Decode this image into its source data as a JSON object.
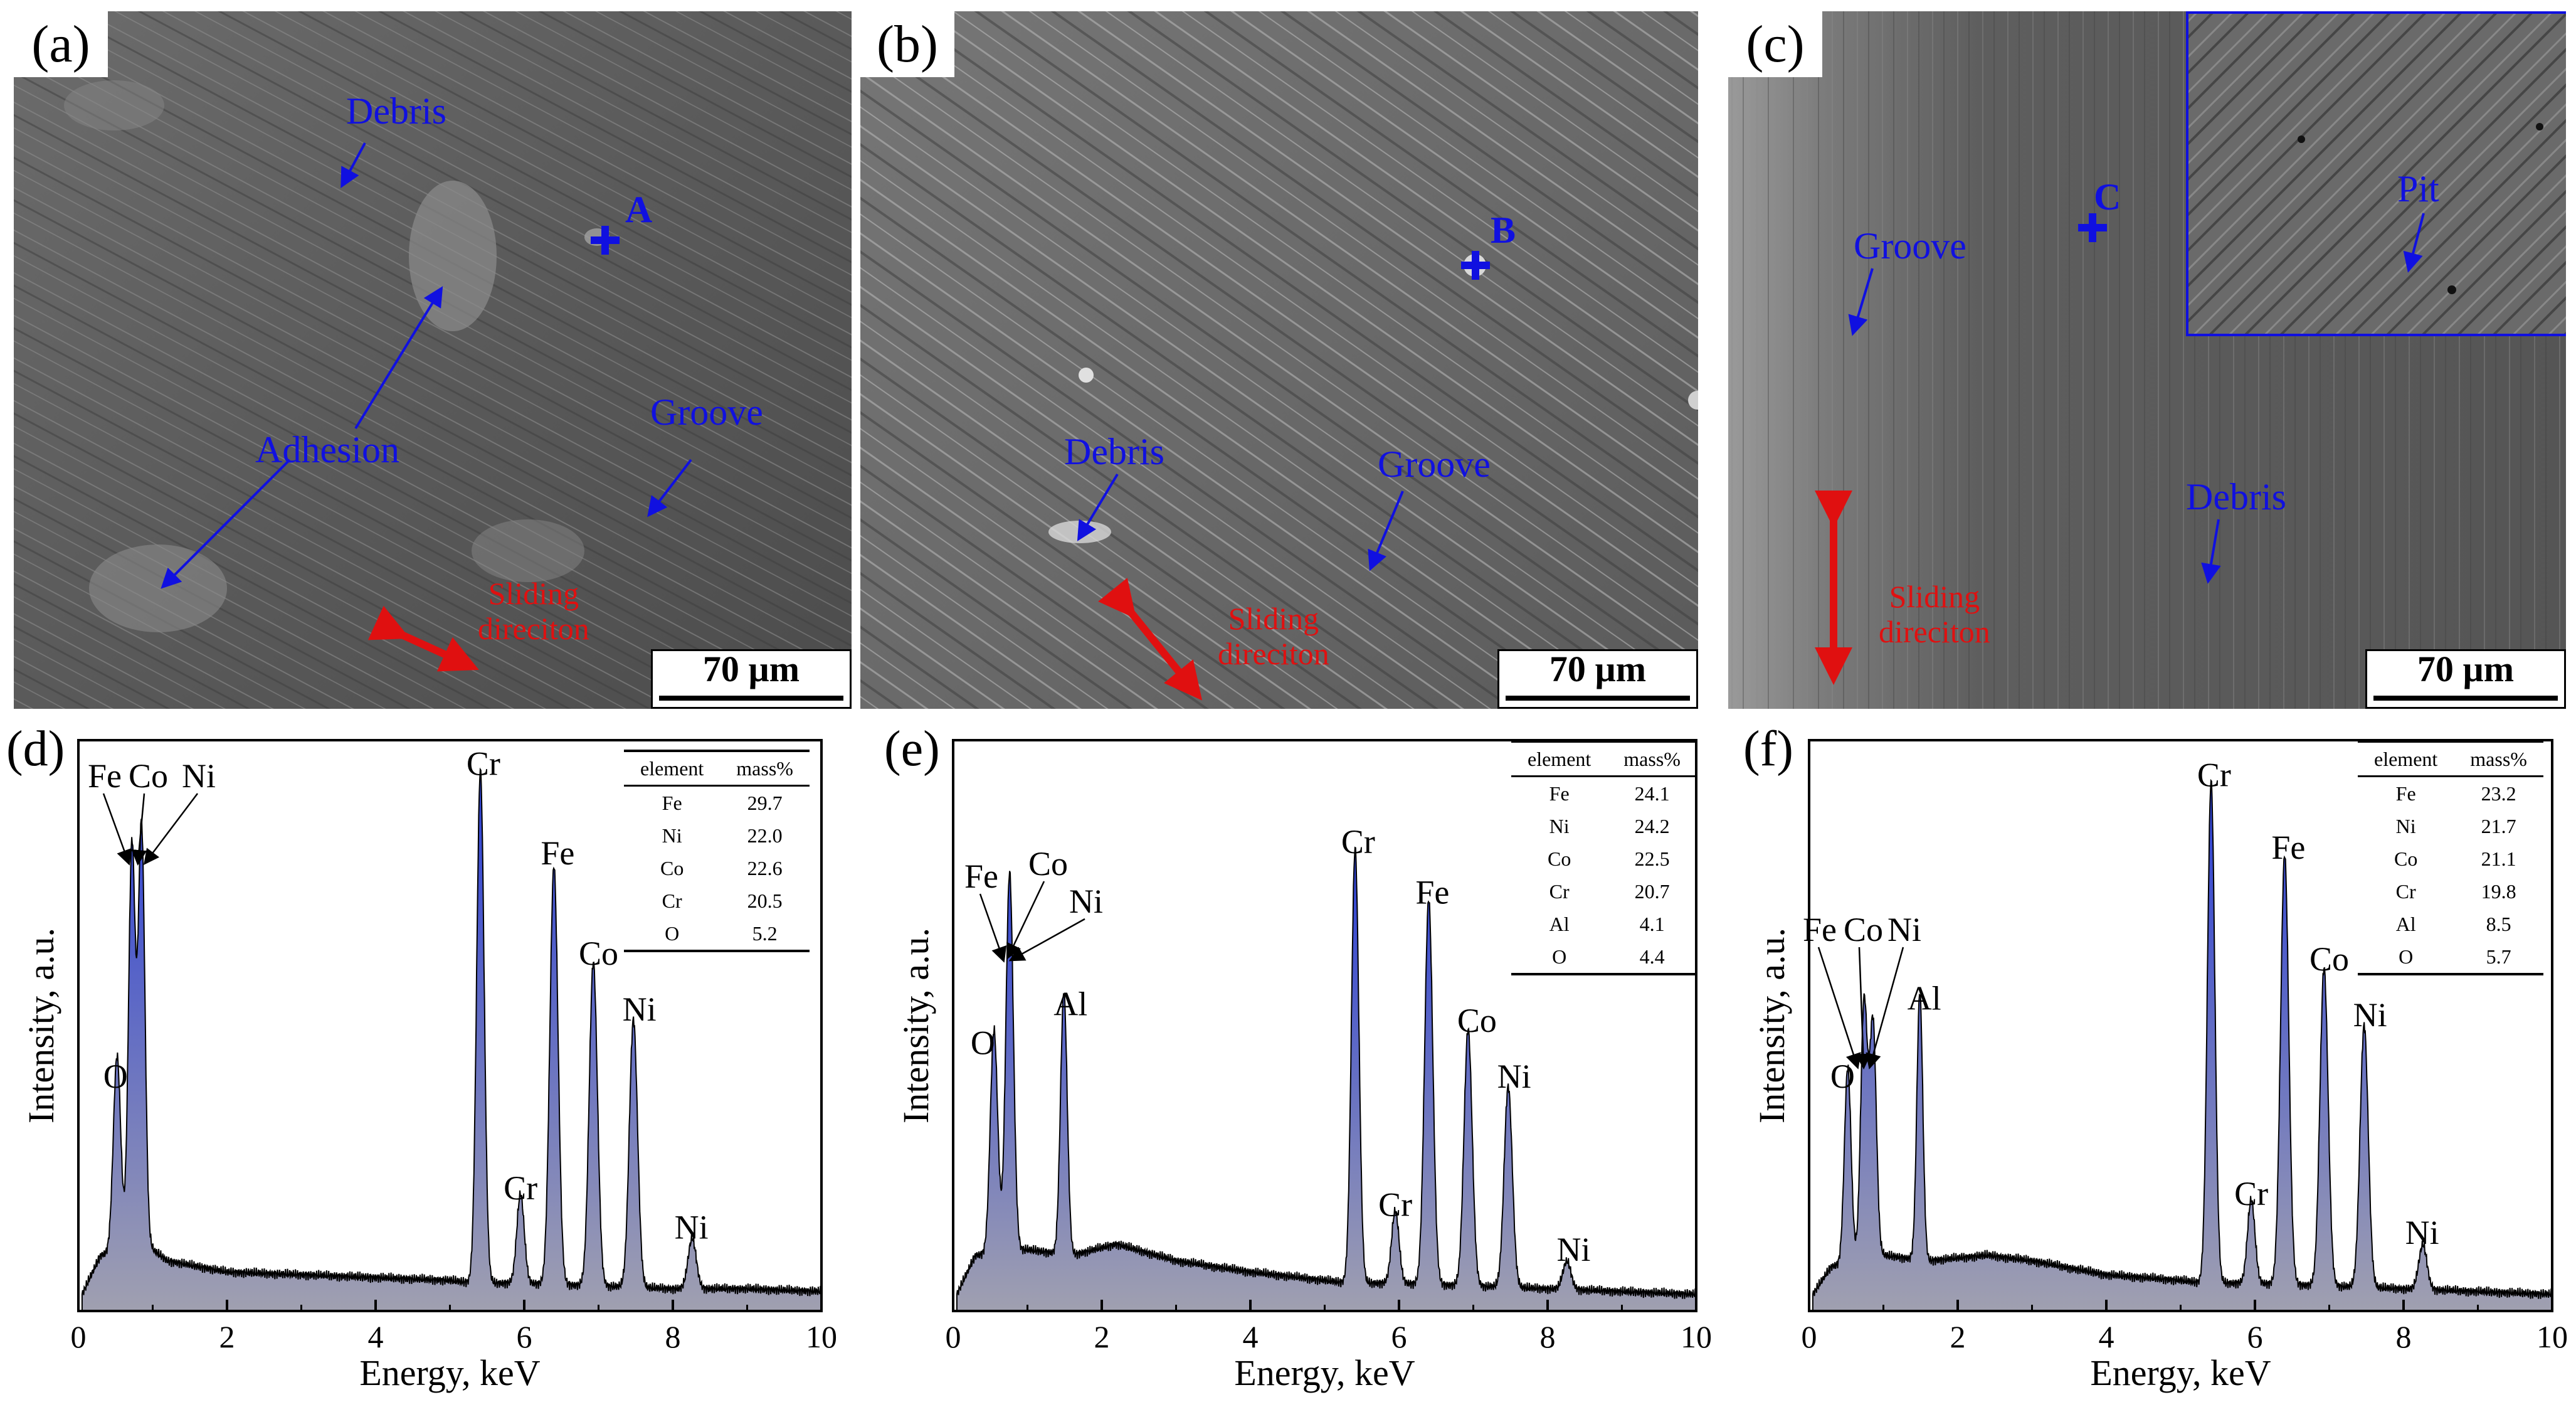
{
  "sem_panels": [
    {
      "letter": "(a)",
      "scale": "70 µm",
      "point": "A",
      "labels": [
        "Debris",
        "Adhesion",
        "Groove"
      ],
      "sliding": [
        "Sliding",
        "direciton"
      ]
    },
    {
      "letter": "(b)",
      "scale": "70 µm",
      "point": "B",
      "labels": [
        "Debris",
        "Groove"
      ],
      "sliding": [
        "Sliding",
        "direciton"
      ]
    },
    {
      "letter": "(c)",
      "scale": "70 µm",
      "point": "C",
      "labels": [
        "Groove",
        "Debris",
        "Pit"
      ],
      "sliding": [
        "Sliding",
        "direciton"
      ]
    }
  ],
  "colors": {
    "annotation": "#1010e0",
    "sliding": "#e01010",
    "spectrum_fill_top": "#2b3fd6",
    "spectrum_fill_bottom": "#a0a0b0"
  },
  "chart_data": [
    {
      "type": "area",
      "letter": "(d)",
      "xlabel": "Energy, keV",
      "ylabel": "Intensity, a.u.",
      "xlim": [
        0,
        10
      ],
      "xticks": [
        "0",
        "2",
        "4",
        "6",
        "8",
        "10"
      ],
      "grid": false,
      "baseline": {
        "x": [
          0.05,
          0.3,
          0.9,
          1.2,
          2,
          3,
          4,
          5,
          5.3,
          6,
          7,
          8,
          9,
          10
        ],
        "y": [
          0.03,
          0.1,
          0.12,
          0.09,
          0.07,
          0.065,
          0.06,
          0.055,
          0.05,
          0.05,
          0.045,
          0.04,
          0.04,
          0.035
        ]
      },
      "peaks": [
        {
          "label": "O",
          "x": 0.52,
          "y": 0.35,
          "w": 0.05
        },
        {
          "label": "Fe/Co/Ni L",
          "x": 0.72,
          "y": 0.72,
          "w": 0.045
        },
        {
          "label": "",
          "x": 0.85,
          "y": 0.75,
          "w": 0.045
        },
        {
          "label": "Cr",
          "x": 5.41,
          "y": 0.92,
          "w": 0.05
        },
        {
          "label": "Cr",
          "x": 5.95,
          "y": 0.16,
          "w": 0.05
        },
        {
          "label": "Fe",
          "x": 6.4,
          "y": 0.75,
          "w": 0.055
        },
        {
          "label": "Co",
          "x": 6.93,
          "y": 0.58,
          "w": 0.055
        },
        {
          "label": "Ni",
          "x": 7.47,
          "y": 0.48,
          "w": 0.055
        },
        {
          "label": "Ni",
          "x": 8.26,
          "y": 0.09,
          "w": 0.055
        }
      ],
      "peak_labels": [
        {
          "text": "O",
          "x": 0.5,
          "y": 0.4
        },
        {
          "text": "Cr",
          "x": 5.45,
          "y": 0.96
        },
        {
          "text": "Cr",
          "x": 5.95,
          "y": 0.2
        },
        {
          "text": "Fe",
          "x": 6.45,
          "y": 0.8
        },
        {
          "text": "Co",
          "x": 7.0,
          "y": 0.62
        },
        {
          "text": "Ni",
          "x": 7.55,
          "y": 0.52
        },
        {
          "text": "Ni",
          "x": 8.25,
          "y": 0.13
        }
      ],
      "top_labels": [
        "Fe",
        "Co",
        "Ni"
      ],
      "table": {
        "header": [
          "element",
          "mass%"
        ],
        "rows": [
          [
            "Fe",
            "29.7"
          ],
          [
            "Ni",
            "22.0"
          ],
          [
            "Co",
            "22.6"
          ],
          [
            "Cr",
            "20.5"
          ],
          [
            "O",
            "5.2"
          ]
        ]
      }
    },
    {
      "type": "area",
      "letter": "(e)",
      "xlabel": "Energy, keV",
      "ylabel": "Intensity, a.u.",
      "xlim": [
        0,
        10
      ],
      "xticks": [
        "0",
        "2",
        "4",
        "6",
        "8",
        "10"
      ],
      "grid": false,
      "baseline": {
        "x": [
          0.05,
          0.3,
          1.0,
          1.6,
          2.2,
          3,
          4,
          5,
          5.3,
          6,
          7,
          8,
          9,
          10
        ],
        "y": [
          0.03,
          0.1,
          0.11,
          0.1,
          0.12,
          0.09,
          0.07,
          0.055,
          0.05,
          0.05,
          0.045,
          0.04,
          0.035,
          0.03
        ]
      },
      "peaks": [
        {
          "label": "O",
          "x": 0.55,
          "y": 0.4,
          "w": 0.05
        },
        {
          "label": "Fe/Co/Ni L",
          "x": 0.76,
          "y": 0.68,
          "w": 0.05
        },
        {
          "label": "Al",
          "x": 1.49,
          "y": 0.47,
          "w": 0.045
        },
        {
          "label": "Cr",
          "x": 5.41,
          "y": 0.78,
          "w": 0.05
        },
        {
          "label": "Cr",
          "x": 5.95,
          "y": 0.13,
          "w": 0.05
        },
        {
          "label": "Fe",
          "x": 6.4,
          "y": 0.69,
          "w": 0.055
        },
        {
          "label": "Co",
          "x": 6.93,
          "y": 0.46,
          "w": 0.055
        },
        {
          "label": "Ni",
          "x": 7.47,
          "y": 0.36,
          "w": 0.055
        },
        {
          "label": "Ni",
          "x": 8.26,
          "y": 0.05,
          "w": 0.055
        }
      ],
      "peak_labels": [
        {
          "text": "O",
          "x": 0.4,
          "y": 0.46
        },
        {
          "text": "Al",
          "x": 1.58,
          "y": 0.53
        },
        {
          "text": "Cr",
          "x": 5.45,
          "y": 0.82
        },
        {
          "text": "Cr",
          "x": 5.95,
          "y": 0.17
        },
        {
          "text": "Fe",
          "x": 6.45,
          "y": 0.73
        },
        {
          "text": "Co",
          "x": 7.05,
          "y": 0.5
        },
        {
          "text": "Ni",
          "x": 7.55,
          "y": 0.4
        },
        {
          "text": "Ni",
          "x": 8.35,
          "y": 0.09
        }
      ],
      "top_labels": [
        "Fe",
        "Co",
        "Ni"
      ],
      "table": {
        "header": [
          "element",
          "mass%"
        ],
        "rows": [
          [
            "Fe",
            "24.1"
          ],
          [
            "Ni",
            "24.2"
          ],
          [
            "Co",
            "22.5"
          ],
          [
            "Cr",
            "20.7"
          ],
          [
            "Al",
            "4.1"
          ],
          [
            "O",
            "4.4"
          ]
        ]
      }
    },
    {
      "type": "area",
      "letter": "(f)",
      "xlabel": "Energy, keV",
      "ylabel": "Intensity, a.u.",
      "xlim": [
        0,
        10
      ],
      "xticks": [
        "0",
        "2",
        "4",
        "6",
        "8",
        "10"
      ],
      "grid": false,
      "baseline": {
        "x": [
          0.05,
          0.3,
          1.0,
          1.6,
          2.4,
          3,
          4,
          5,
          5.3,
          6,
          7,
          8,
          9,
          10
        ],
        "y": [
          0.03,
          0.08,
          0.1,
          0.09,
          0.1,
          0.09,
          0.065,
          0.055,
          0.05,
          0.05,
          0.045,
          0.04,
          0.035,
          0.03
        ]
      },
      "peaks": [
        {
          "label": "O",
          "x": 0.52,
          "y": 0.35,
          "w": 0.045
        },
        {
          "label": "Fe/Co/Ni L",
          "x": 0.74,
          "y": 0.46,
          "w": 0.045
        },
        {
          "label": "",
          "x": 0.86,
          "y": 0.42,
          "w": 0.045
        },
        {
          "label": "Al",
          "x": 1.49,
          "y": 0.48,
          "w": 0.04
        },
        {
          "label": "Cr",
          "x": 5.41,
          "y": 0.9,
          "w": 0.05
        },
        {
          "label": "Cr",
          "x": 5.95,
          "y": 0.15,
          "w": 0.05
        },
        {
          "label": "Fe",
          "x": 6.4,
          "y": 0.77,
          "w": 0.055
        },
        {
          "label": "Co",
          "x": 6.93,
          "y": 0.57,
          "w": 0.055
        },
        {
          "label": "Ni",
          "x": 7.47,
          "y": 0.47,
          "w": 0.055
        },
        {
          "label": "Ni",
          "x": 8.26,
          "y": 0.08,
          "w": 0.055
        }
      ],
      "peak_labels": [
        {
          "text": "O",
          "x": 0.45,
          "y": 0.4
        },
        {
          "text": "Al",
          "x": 1.55,
          "y": 0.54
        },
        {
          "text": "Cr",
          "x": 5.45,
          "y": 0.94
        },
        {
          "text": "Cr",
          "x": 5.95,
          "y": 0.19
        },
        {
          "text": "Fe",
          "x": 6.45,
          "y": 0.81
        },
        {
          "text": "Co",
          "x": 7.0,
          "y": 0.61
        },
        {
          "text": "Ni",
          "x": 7.55,
          "y": 0.51
        },
        {
          "text": "Ni",
          "x": 8.25,
          "y": 0.12
        }
      ],
      "top_labels": [
        "Fe",
        "Co",
        "Ni"
      ],
      "table": {
        "header": [
          "element",
          "mass%"
        ],
        "rows": [
          [
            "Fe",
            "23.2"
          ],
          [
            "Ni",
            "21.7"
          ],
          [
            "Co",
            "21.1"
          ],
          [
            "Cr",
            "19.8"
          ],
          [
            "Al",
            "8.5"
          ],
          [
            "O",
            "5.7"
          ]
        ]
      }
    }
  ]
}
